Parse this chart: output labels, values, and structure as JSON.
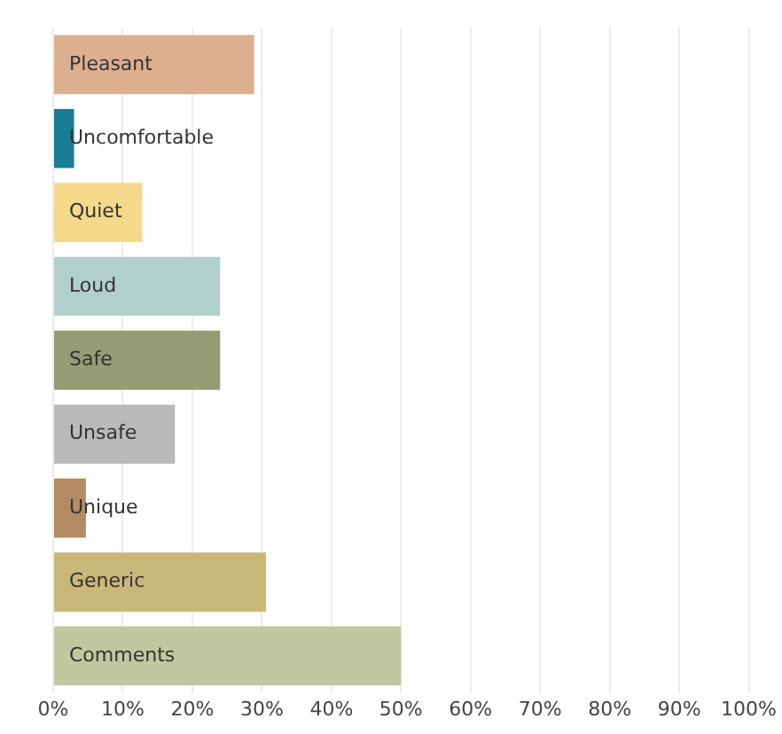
{
  "chart_data": {
    "type": "bar",
    "orientation": "horizontal",
    "categories": [
      "Pleasant",
      "Uncomfortable",
      "Quiet",
      "Loud",
      "Safe",
      "Unsafe",
      "Unique",
      "Generic",
      "Comments"
    ],
    "values": [
      28.9,
      3.0,
      12.8,
      24.0,
      24.0,
      17.5,
      4.7,
      30.6,
      50.0
    ],
    "colors": [
      "#dcaf8e",
      "#177e96",
      "#f5d98a",
      "#b1d0cb",
      "#979c74",
      "#bababa",
      "#b38b62",
      "#c9b878",
      "#c2c79f"
    ],
    "xlim": [
      0,
      100
    ],
    "xticks": [
      {
        "value": 0,
        "label": "0%"
      },
      {
        "value": 10,
        "label": "10%"
      },
      {
        "value": 20,
        "label": "20%"
      },
      {
        "value": 30,
        "label": "30%"
      },
      {
        "value": 40,
        "label": "40%"
      },
      {
        "value": 50,
        "label": "50%"
      },
      {
        "value": 60,
        "label": "60%"
      },
      {
        "value": 70,
        "label": "70%"
      },
      {
        "value": 80,
        "label": "80%"
      },
      {
        "value": 90,
        "label": "90%"
      },
      {
        "value": 100,
        "label": "100%"
      }
    ],
    "grid": "x",
    "legend": false
  }
}
